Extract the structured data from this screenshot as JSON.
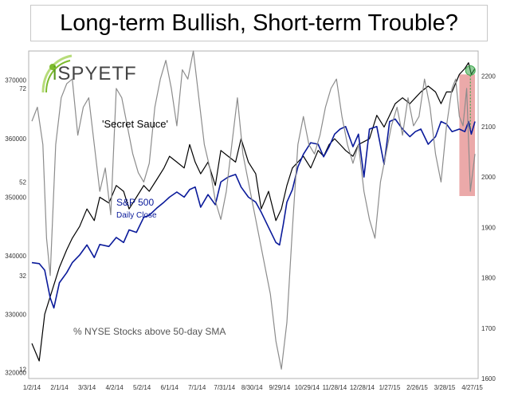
{
  "title": "Long-term Bullish, Short-term Trouble?",
  "logo": {
    "prefix": "i",
    "brand": "SPY",
    "suffix": "ETF"
  },
  "colors": {
    "secret": "#000000",
    "spx": "#0a1a9a",
    "nyse": "#8c8c8c",
    "highlight": "#e79a9a",
    "marker": "#3aa84a",
    "accent": "#7dbb2d"
  },
  "annotations": {
    "secret": "'Secret Sauce'",
    "spx_title": "S&P 500",
    "spx_sub": "Daily Close",
    "nyse": "% NYSE Stocks above 50-day SMA"
  },
  "chart_data": {
    "type": "line",
    "x_ticks": [
      "1/2/14",
      "2/1/14",
      "3/3/14",
      "4/2/14",
      "5/2/14",
      "6/1/14",
      "7/1/14",
      "7/31/14",
      "8/30/14",
      "9/29/14",
      "10/29/14",
      "11/28/14",
      "12/28/14",
      "1/27/15",
      "2/26/15",
      "3/28/15",
      "4/27/15"
    ],
    "x_tick_days": [
      0,
      30,
      60,
      90,
      120,
      150,
      180,
      210,
      240,
      270,
      300,
      330,
      360,
      390,
      420,
      450,
      480
    ],
    "x_range_days": [
      0,
      483
    ],
    "left_axis_secret": {
      "ticks": [
        320000,
        330000,
        340000,
        350000,
        360000,
        370000
      ],
      "range": [
        319000,
        375000
      ]
    },
    "left_axis_nyse": {
      "ticks": [
        12,
        32,
        52,
        72
      ],
      "range": [
        10,
        80
      ]
    },
    "right_axis": {
      "ticks": [
        1600,
        1700,
        1800,
        1900,
        2000,
        2100,
        2200
      ],
      "range": [
        1600,
        2250
      ]
    },
    "series": [
      {
        "id": "secret",
        "days": [
          0,
          8,
          14,
          22,
          30,
          38,
          44,
          52,
          60,
          68,
          74,
          84,
          92,
          100,
          106,
          114,
          122,
          128,
          136,
          144,
          150,
          158,
          166,
          172,
          178,
          184,
          192,
          200,
          206,
          214,
          222,
          228,
          236,
          244,
          250,
          258,
          266,
          272,
          278,
          284,
          290,
          296,
          304,
          312,
          318,
          324,
          330,
          336,
          342,
          350,
          356,
          362,
          368,
          376,
          384,
          390,
          396,
          404,
          412,
          418,
          424,
          432,
          440,
          446,
          452,
          458,
          466,
          472,
          476,
          479,
          483
        ],
        "values": [
          325000,
          322000,
          330000,
          334000,
          338000,
          341000,
          343000,
          345000,
          348000,
          346000,
          350000,
          349000,
          352000,
          351000,
          348000,
          350000,
          352000,
          351000,
          353000,
          355000,
          357000,
          356000,
          355000,
          359000,
          356000,
          354000,
          356000,
          352000,
          358000,
          357000,
          356000,
          360000,
          356000,
          354000,
          348000,
          351000,
          346000,
          348000,
          352000,
          355000,
          356000,
          357000,
          355000,
          358000,
          357000,
          359000,
          360000,
          359000,
          358000,
          357000,
          359000,
          359500,
          360000,
          364000,
          362000,
          364000,
          366000,
          367000,
          366000,
          367000,
          368000,
          369000,
          368000,
          366000,
          368000,
          368000,
          371000,
          372000,
          373000,
          371000,
          372000
        ]
      },
      {
        "id": "spx",
        "days": [
          0,
          8,
          14,
          20,
          24,
          30,
          38,
          44,
          52,
          60,
          68,
          74,
          84,
          92,
          100,
          106,
          114,
          122,
          128,
          136,
          144,
          150,
          158,
          166,
          172,
          178,
          184,
          192,
          200,
          206,
          214,
          222,
          228,
          236,
          244,
          250,
          258,
          266,
          270,
          274,
          278,
          284,
          290,
          296,
          304,
          312,
          318,
          324,
          330,
          336,
          342,
          350,
          356,
          362,
          368,
          376,
          384,
          390,
          396,
          404,
          412,
          418,
          424,
          432,
          440,
          446,
          452,
          458,
          466,
          472,
          476,
          479,
          483
        ],
        "values": [
          1830,
          1828,
          1815,
          1760,
          1740,
          1790,
          1810,
          1830,
          1845,
          1865,
          1840,
          1866,
          1862,
          1880,
          1870,
          1895,
          1890,
          1920,
          1924,
          1938,
          1950,
          1960,
          1970,
          1960,
          1975,
          1980,
          1940,
          1965,
          1945,
          1990,
          2000,
          2005,
          1980,
          1960,
          1950,
          1930,
          1900,
          1870,
          1865,
          1905,
          1950,
          1975,
          2020,
          2045,
          2068,
          2065,
          2040,
          2060,
          2085,
          2095,
          2100,
          2060,
          2085,
          2000,
          2095,
          2100,
          2025,
          2110,
          2115,
          2095,
          2080,
          2090,
          2095,
          2065,
          2080,
          2110,
          2105,
          2090,
          2095,
          2090,
          2110,
          2085,
          2110
        ]
      },
      {
        "id": "nyse",
        "days": [
          0,
          6,
          12,
          16,
          20,
          26,
          32,
          38,
          44,
          50,
          56,
          62,
          68,
          74,
          80,
          86,
          92,
          98,
          104,
          110,
          116,
          122,
          128,
          134,
          140,
          146,
          152,
          158,
          164,
          170,
          176,
          182,
          188,
          194,
          200,
          206,
          212,
          218,
          224,
          230,
          236,
          242,
          248,
          254,
          260,
          266,
          272,
          278,
          284,
          290,
          296,
          302,
          308,
          314,
          320,
          326,
          332,
          338,
          344,
          350,
          356,
          362,
          368,
          374,
          380,
          386,
          392,
          398,
          404,
          410,
          416,
          422,
          428,
          434,
          440,
          446,
          452,
          458,
          462,
          466,
          470,
          474,
          478,
          483
        ],
        "values": [
          65,
          68,
          60,
          40,
          32,
          60,
          70,
          73,
          74,
          62,
          68,
          70,
          60,
          50,
          55,
          45,
          72,
          70,
          64,
          58,
          54,
          52,
          56,
          68,
          74,
          78,
          72,
          64,
          76,
          74,
          80,
          70,
          60,
          55,
          48,
          44,
          50,
          60,
          70,
          58,
          52,
          46,
          40,
          34,
          28,
          18,
          12,
          22,
          42,
          60,
          66,
          60,
          58,
          62,
          68,
          72,
          74,
          66,
          60,
          56,
          60,
          50,
          44,
          40,
          52,
          58,
          64,
          68,
          62,
          70,
          64,
          66,
          74,
          68,
          58,
          52,
          64,
          72,
          74,
          66,
          64,
          72,
          50,
          58
        ]
      }
    ],
    "highlight_days": [
      466,
      483
    ],
    "highlight_nyse_range": [
      49,
      75
    ],
    "marker_day": 478
  }
}
